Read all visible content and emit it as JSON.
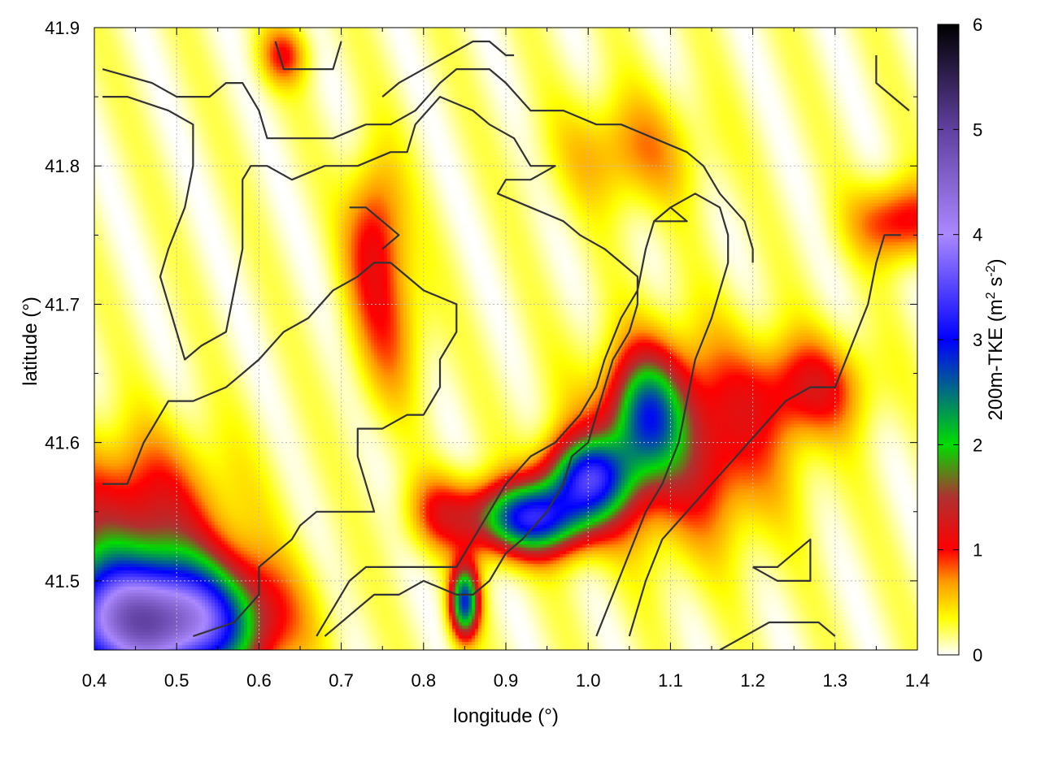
{
  "chart_data": {
    "type": "heatmap",
    "xlabel": "longitude (°)",
    "ylabel": "latitude (°)",
    "colorbar_label": "200m-TKE (m² s⁻²)",
    "colorbar_label_parts": {
      "pre": "200m-TKE (m",
      "sup1": "2",
      "mid": " s",
      "sup2": "-2",
      "post": ")"
    },
    "xlim": [
      0.4,
      1.4
    ],
    "ylim": [
      41.45,
      41.9
    ],
    "x_ticks": [
      "0.4",
      "0.5",
      "0.6",
      "0.7",
      "0.8",
      "0.9",
      "1.0",
      "1.1",
      "1.2",
      "1.3",
      "1.4"
    ],
    "y_ticks": [
      "41.5",
      "41.6",
      "41.7",
      "41.8",
      "41.9"
    ],
    "colorbar_ticks": [
      "0",
      "1",
      "2",
      "3",
      "4",
      "5",
      "6"
    ],
    "color_range": [
      0,
      6
    ],
    "grid": true,
    "colormap": [
      {
        "v": 0.0,
        "c": "#ffffff"
      },
      {
        "v": 0.35,
        "c": "#ffff00"
      },
      {
        "v": 0.7,
        "c": "#ff9900"
      },
      {
        "v": 1.0,
        "c": "#ff0000"
      },
      {
        "v": 1.5,
        "c": "#b03030"
      },
      {
        "v": 2.0,
        "c": "#00dd00"
      },
      {
        "v": 3.0,
        "c": "#0000ff"
      },
      {
        "v": 4.0,
        "c": "#aa88ff"
      },
      {
        "v": 5.0,
        "c": "#6040a0"
      },
      {
        "v": 6.0,
        "c": "#000000"
      }
    ],
    "hotspots": [
      {
        "lon": 0.43,
        "lat": 41.47,
        "peak": 3.2,
        "slon": 0.08,
        "slat": 0.035
      },
      {
        "lon": 0.52,
        "lat": 41.47,
        "peak": 2.4,
        "slon": 0.07,
        "slat": 0.03
      },
      {
        "lon": 0.93,
        "lat": 41.545,
        "peak": 2.9,
        "slon": 0.05,
        "slat": 0.018
      },
      {
        "lon": 1.0,
        "lat": 41.575,
        "peak": 2.6,
        "slon": 0.035,
        "slat": 0.02
      },
      {
        "lon": 1.07,
        "lat": 41.62,
        "peak": 1.8,
        "slon": 0.03,
        "slat": 0.03
      },
      {
        "lon": 0.85,
        "lat": 41.485,
        "peak": 2.6,
        "slon": 0.012,
        "slat": 0.018
      },
      {
        "lon": 1.12,
        "lat": 41.6,
        "peak": 1.2,
        "slon": 0.08,
        "slat": 0.05
      },
      {
        "lon": 0.45,
        "lat": 41.55,
        "peak": 1.0,
        "slon": 0.08,
        "slat": 0.04
      },
      {
        "lon": 0.74,
        "lat": 41.75,
        "peak": 0.9,
        "slon": 0.025,
        "slat": 0.04
      },
      {
        "lon": 1.38,
        "lat": 41.76,
        "peak": 1.0,
        "slon": 0.04,
        "slat": 0.02
      },
      {
        "lon": 0.76,
        "lat": 41.68,
        "peak": 0.6,
        "slon": 0.03,
        "slat": 0.04
      },
      {
        "lon": 1.27,
        "lat": 41.64,
        "peak": 0.9,
        "slon": 0.05,
        "slat": 0.025
      },
      {
        "lon": 0.63,
        "lat": 41.88,
        "peak": 0.8,
        "slon": 0.02,
        "slat": 0.015
      },
      {
        "lon": 1.05,
        "lat": 41.81,
        "peak": 0.6,
        "slon": 0.06,
        "slat": 0.03
      },
      {
        "lon": 0.82,
        "lat": 41.55,
        "peak": 0.7,
        "slon": 0.03,
        "slat": 0.02
      }
    ],
    "contours": [
      [
        [
          0.41,
          41.87
        ],
        [
          0.47,
          41.86
        ],
        [
          0.5,
          41.85
        ],
        [
          0.54,
          41.85
        ],
        [
          0.56,
          41.86
        ],
        [
          0.58,
          41.86
        ],
        [
          0.6,
          41.84
        ],
        [
          0.61,
          41.82
        ],
        [
          0.65,
          41.82
        ],
        [
          0.69,
          41.82
        ],
        [
          0.73,
          41.83
        ],
        [
          0.76,
          41.83
        ],
        [
          0.79,
          41.84
        ],
        [
          0.82,
          41.86
        ],
        [
          0.84,
          41.87
        ],
        [
          0.86,
          41.87
        ],
        [
          0.88,
          41.87
        ],
        [
          0.9,
          41.86
        ],
        [
          0.93,
          41.84
        ],
        [
          0.97,
          41.84
        ],
        [
          1.01,
          41.83
        ],
        [
          1.04,
          41.83
        ],
        [
          1.08,
          41.82
        ],
        [
          1.12,
          41.81
        ],
        [
          1.14,
          41.8
        ],
        [
          1.16,
          41.78
        ],
        [
          1.19,
          41.76
        ],
        [
          1.2,
          41.74
        ],
        [
          1.2,
          41.73
        ]
      ],
      [
        [
          0.41,
          41.85
        ],
        [
          0.44,
          41.85
        ],
        [
          0.49,
          41.84
        ],
        [
          0.52,
          41.83
        ],
        [
          0.52,
          41.8
        ],
        [
          0.51,
          41.77
        ],
        [
          0.49,
          41.74
        ],
        [
          0.48,
          41.72
        ],
        [
          0.49,
          41.7
        ],
        [
          0.5,
          41.68
        ],
        [
          0.51,
          41.66
        ],
        [
          0.53,
          41.67
        ],
        [
          0.56,
          41.68
        ],
        [
          0.57,
          41.71
        ],
        [
          0.58,
          41.74
        ],
        [
          0.58,
          41.77
        ],
        [
          0.58,
          41.79
        ],
        [
          0.59,
          41.8
        ],
        [
          0.61,
          41.8
        ],
        [
          0.64,
          41.79
        ],
        [
          0.68,
          41.8
        ],
        [
          0.72,
          41.8
        ],
        [
          0.76,
          41.81
        ],
        [
          0.78,
          41.81
        ],
        [
          0.79,
          41.83
        ],
        [
          0.82,
          41.85
        ],
        [
          0.86,
          41.84
        ],
        [
          0.88,
          41.83
        ],
        [
          0.91,
          41.82
        ],
        [
          0.93,
          41.8
        ],
        [
          0.96,
          41.8
        ],
        [
          0.93,
          41.79
        ],
        [
          0.9,
          41.79
        ],
        [
          0.89,
          41.78
        ],
        [
          0.93,
          41.77
        ],
        [
          0.97,
          41.76
        ],
        [
          0.99,
          41.75
        ],
        [
          1.02,
          41.74
        ],
        [
          1.04,
          41.73
        ],
        [
          1.06,
          41.72
        ],
        [
          1.06,
          41.7
        ],
        [
          1.05,
          41.68
        ],
        [
          1.03,
          41.66
        ],
        [
          1.02,
          41.64
        ],
        [
          1.01,
          41.62
        ],
        [
          1.0,
          41.6
        ],
        [
          0.98,
          41.59
        ],
        [
          0.97,
          41.57
        ],
        [
          0.95,
          41.55
        ],
        [
          0.92,
          41.53
        ],
        [
          0.9,
          41.52
        ],
        [
          0.88,
          41.5
        ],
        [
          0.86,
          41.49
        ],
        [
          0.84,
          41.49
        ],
        [
          0.8,
          41.5
        ],
        [
          0.77,
          41.49
        ],
        [
          0.74,
          41.49
        ],
        [
          0.72,
          41.48
        ],
        [
          0.7,
          41.47
        ],
        [
          0.68,
          41.46
        ]
      ],
      [
        [
          0.41,
          41.57
        ],
        [
          0.44,
          41.57
        ],
        [
          0.46,
          41.6
        ],
        [
          0.49,
          41.63
        ],
        [
          0.52,
          41.63
        ],
        [
          0.56,
          41.64
        ],
        [
          0.58,
          41.65
        ],
        [
          0.6,
          41.66
        ],
        [
          0.63,
          41.68
        ],
        [
          0.66,
          41.69
        ],
        [
          0.69,
          41.71
        ],
        [
          0.72,
          41.72
        ],
        [
          0.74,
          41.73
        ],
        [
          0.76,
          41.73
        ],
        [
          0.8,
          41.71
        ],
        [
          0.84,
          41.7
        ],
        [
          0.84,
          41.68
        ],
        [
          0.82,
          41.66
        ],
        [
          0.82,
          41.64
        ],
        [
          0.8,
          41.62
        ],
        [
          0.78,
          41.62
        ],
        [
          0.75,
          41.61
        ],
        [
          0.72,
          41.61
        ],
        [
          0.72,
          41.59
        ],
        [
          0.73,
          41.57
        ],
        [
          0.74,
          41.55
        ],
        [
          0.72,
          41.55
        ],
        [
          0.69,
          41.55
        ],
        [
          0.67,
          41.55
        ],
        [
          0.65,
          41.54
        ],
        [
          0.64,
          41.53
        ],
        [
          0.62,
          41.52
        ],
        [
          0.6,
          41.51
        ],
        [
          0.6,
          41.49
        ],
        [
          0.57,
          41.47
        ],
        [
          0.52,
          41.46
        ]
      ],
      [
        [
          0.67,
          41.46
        ],
        [
          0.69,
          41.48
        ],
        [
          0.71,
          41.5
        ],
        [
          0.73,
          41.51
        ],
        [
          0.77,
          41.51
        ],
        [
          0.81,
          41.51
        ],
        [
          0.84,
          41.51
        ],
        [
          0.86,
          41.53
        ],
        [
          0.88,
          41.55
        ],
        [
          0.9,
          41.57
        ],
        [
          0.93,
          41.59
        ],
        [
          0.96,
          41.6
        ],
        [
          0.99,
          41.62
        ],
        [
          1.01,
          41.64
        ],
        [
          1.02,
          41.66
        ],
        [
          1.04,
          41.69
        ],
        [
          1.06,
          41.71
        ],
        [
          1.07,
          41.74
        ],
        [
          1.08,
          41.76
        ],
        [
          1.1,
          41.77
        ],
        [
          1.13,
          41.78
        ],
        [
          1.16,
          41.77
        ],
        [
          1.17,
          41.75
        ],
        [
          1.17,
          41.73
        ],
        [
          1.16,
          41.71
        ],
        [
          1.15,
          41.69
        ],
        [
          1.13,
          41.66
        ],
        [
          1.12,
          41.63
        ],
        [
          1.11,
          41.6
        ],
        [
          1.09,
          41.57
        ],
        [
          1.07,
          41.55
        ],
        [
          1.05,
          41.52
        ],
        [
          1.03,
          41.49
        ],
        [
          1.01,
          41.46
        ]
      ],
      [
        [
          1.05,
          41.46
        ],
        [
          1.07,
          41.5
        ],
        [
          1.09,
          41.53
        ],
        [
          1.12,
          41.55
        ],
        [
          1.15,
          41.57
        ],
        [
          1.18,
          41.59
        ],
        [
          1.21,
          41.61
        ],
        [
          1.24,
          41.63
        ],
        [
          1.27,
          41.64
        ],
        [
          1.3,
          41.64
        ],
        [
          1.32,
          41.67
        ],
        [
          1.34,
          41.7
        ],
        [
          1.35,
          41.73
        ],
        [
          1.36,
          41.75
        ],
        [
          1.38,
          41.75
        ]
      ],
      [
        [
          0.75,
          41.85
        ],
        [
          0.77,
          41.86
        ],
        [
          0.8,
          41.87
        ],
        [
          0.83,
          41.88
        ],
        [
          0.86,
          41.89
        ],
        [
          0.88,
          41.89
        ],
        [
          0.9,
          41.88
        ],
        [
          0.91,
          41.88
        ]
      ],
      [
        [
          1.35,
          41.88
        ],
        [
          1.35,
          41.86
        ],
        [
          1.37,
          41.85
        ],
        [
          1.39,
          41.84
        ]
      ],
      [
        [
          0.71,
          41.77
        ],
        [
          0.73,
          41.77
        ],
        [
          0.75,
          41.76
        ],
        [
          0.77,
          41.75
        ],
        [
          0.75,
          41.74
        ]
      ],
      [
        [
          1.16,
          41.45
        ],
        [
          1.19,
          41.46
        ],
        [
          1.22,
          41.47
        ],
        [
          1.25,
          41.47
        ],
        [
          1.28,
          41.47
        ],
        [
          1.3,
          41.46
        ]
      ],
      [
        [
          1.2,
          41.51
        ],
        [
          1.23,
          41.51
        ],
        [
          1.25,
          41.52
        ],
        [
          1.27,
          41.53
        ],
        [
          1.27,
          41.5
        ],
        [
          1.26,
          41.5
        ],
        [
          1.23,
          41.5
        ],
        [
          1.2,
          41.51
        ]
      ],
      [
        [
          0.62,
          41.89
        ],
        [
          0.63,
          41.87
        ],
        [
          0.66,
          41.87
        ],
        [
          0.69,
          41.87
        ],
        [
          0.7,
          41.89
        ]
      ],
      [
        [
          1.08,
          41.76
        ],
        [
          1.1,
          41.77
        ],
        [
          1.12,
          41.76
        ],
        [
          1.1,
          41.76
        ],
        [
          1.08,
          41.76
        ]
      ]
    ]
  }
}
